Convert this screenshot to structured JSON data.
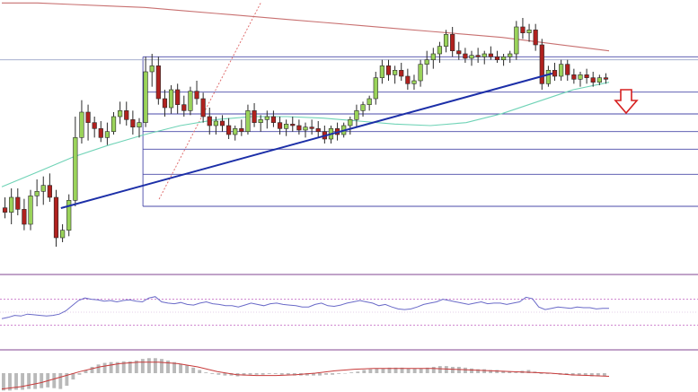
{
  "chart_data": [
    {
      "type": "candlestick",
      "panel": "price",
      "candles": [
        {
          "o": 201,
          "h": 208,
          "l": 194,
          "c": 198
        },
        {
          "o": 198,
          "h": 214,
          "l": 190,
          "c": 208
        },
        {
          "o": 208,
          "h": 214,
          "l": 196,
          "c": 200
        },
        {
          "o": 200,
          "h": 207,
          "l": 186,
          "c": 190
        },
        {
          "o": 190,
          "h": 213,
          "l": 186,
          "c": 209
        },
        {
          "o": 209,
          "h": 220,
          "l": 202,
          "c": 212
        },
        {
          "o": 212,
          "h": 222,
          "l": 203,
          "c": 216
        },
        {
          "o": 216,
          "h": 224,
          "l": 205,
          "c": 208
        },
        {
          "o": 208,
          "h": 213,
          "l": 175,
          "c": 181
        },
        {
          "o": 181,
          "h": 190,
          "l": 178,
          "c": 186
        },
        {
          "o": 186,
          "h": 210,
          "l": 182,
          "c": 206
        },
        {
          "o": 206,
          "h": 262,
          "l": 202,
          "c": 248
        },
        {
          "o": 248,
          "h": 273,
          "l": 244,
          "c": 265
        },
        {
          "o": 265,
          "h": 270,
          "l": 246,
          "c": 258
        },
        {
          "o": 258,
          "h": 262,
          "l": 248,
          "c": 254
        },
        {
          "o": 254,
          "h": 259,
          "l": 245,
          "c": 248
        },
        {
          "o": 248,
          "h": 258,
          "l": 243,
          "c": 252
        },
        {
          "o": 252,
          "h": 265,
          "l": 250,
          "c": 262
        },
        {
          "o": 262,
          "h": 272,
          "l": 257,
          "c": 266
        },
        {
          "o": 266,
          "h": 272,
          "l": 256,
          "c": 260
        },
        {
          "o": 260,
          "h": 266,
          "l": 250,
          "c": 255
        },
        {
          "o": 255,
          "h": 261,
          "l": 248,
          "c": 258
        },
        {
          "o": 258,
          "h": 302,
          "l": 255,
          "c": 292
        },
        {
          "o": 292,
          "h": 304,
          "l": 282,
          "c": 296
        },
        {
          "o": 296,
          "h": 302,
          "l": 270,
          "c": 274
        },
        {
          "o": 274,
          "h": 280,
          "l": 262,
          "c": 268
        },
        {
          "o": 268,
          "h": 283,
          "l": 264,
          "c": 280
        },
        {
          "o": 280,
          "h": 284,
          "l": 264,
          "c": 270
        },
        {
          "o": 270,
          "h": 276,
          "l": 262,
          "c": 266
        },
        {
          "o": 266,
          "h": 282,
          "l": 263,
          "c": 279
        },
        {
          "o": 279,
          "h": 286,
          "l": 270,
          "c": 274
        },
        {
          "o": 274,
          "h": 278,
          "l": 258,
          "c": 262
        },
        {
          "o": 262,
          "h": 268,
          "l": 250,
          "c": 256
        },
        {
          "o": 256,
          "h": 262,
          "l": 250,
          "c": 259
        },
        {
          "o": 259,
          "h": 263,
          "l": 252,
          "c": 256
        },
        {
          "o": 256,
          "h": 261,
          "l": 247,
          "c": 250
        },
        {
          "o": 250,
          "h": 256,
          "l": 246,
          "c": 254
        },
        {
          "o": 254,
          "h": 260,
          "l": 249,
          "c": 252
        },
        {
          "o": 252,
          "h": 270,
          "l": 250,
          "c": 266
        },
        {
          "o": 266,
          "h": 271,
          "l": 255,
          "c": 258
        },
        {
          "o": 258,
          "h": 263,
          "l": 252,
          "c": 260
        },
        {
          "o": 260,
          "h": 266,
          "l": 254,
          "c": 262
        },
        {
          "o": 262,
          "h": 266,
          "l": 255,
          "c": 258
        },
        {
          "o": 258,
          "h": 262,
          "l": 250,
          "c": 254
        },
        {
          "o": 254,
          "h": 260,
          "l": 249,
          "c": 257
        },
        {
          "o": 257,
          "h": 262,
          "l": 252,
          "c": 256
        },
        {
          "o": 256,
          "h": 260,
          "l": 250,
          "c": 253
        },
        {
          "o": 253,
          "h": 258,
          "l": 248,
          "c": 255
        },
        {
          "o": 255,
          "h": 260,
          "l": 250,
          "c": 254
        },
        {
          "o": 254,
          "h": 259,
          "l": 248,
          "c": 252
        },
        {
          "o": 252,
          "h": 256,
          "l": 244,
          "c": 247
        },
        {
          "o": 247,
          "h": 256,
          "l": 244,
          "c": 254
        },
        {
          "o": 254,
          "h": 258,
          "l": 246,
          "c": 250
        },
        {
          "o": 250,
          "h": 258,
          "l": 248,
          "c": 256
        },
        {
          "o": 256,
          "h": 262,
          "l": 250,
          "c": 260
        },
        {
          "o": 260,
          "h": 270,
          "l": 255,
          "c": 266
        },
        {
          "o": 266,
          "h": 272,
          "l": 262,
          "c": 270
        },
        {
          "o": 270,
          "h": 276,
          "l": 266,
          "c": 274
        },
        {
          "o": 274,
          "h": 292,
          "l": 270,
          "c": 288
        },
        {
          "o": 288,
          "h": 300,
          "l": 284,
          "c": 296
        },
        {
          "o": 296,
          "h": 300,
          "l": 286,
          "c": 290
        },
        {
          "o": 290,
          "h": 296,
          "l": 284,
          "c": 293
        },
        {
          "o": 293,
          "h": 298,
          "l": 286,
          "c": 289
        },
        {
          "o": 289,
          "h": 294,
          "l": 280,
          "c": 284
        },
        {
          "o": 284,
          "h": 290,
          "l": 280,
          "c": 286
        },
        {
          "o": 286,
          "h": 300,
          "l": 282,
          "c": 297
        },
        {
          "o": 297,
          "h": 306,
          "l": 290,
          "c": 300
        },
        {
          "o": 300,
          "h": 308,
          "l": 294,
          "c": 304
        },
        {
          "o": 304,
          "h": 312,
          "l": 298,
          "c": 309
        },
        {
          "o": 309,
          "h": 320,
          "l": 305,
          "c": 317
        },
        {
          "o": 317,
          "h": 322,
          "l": 302,
          "c": 306
        },
        {
          "o": 306,
          "h": 312,
          "l": 300,
          "c": 304
        },
        {
          "o": 304,
          "h": 308,
          "l": 298,
          "c": 301
        },
        {
          "o": 301,
          "h": 306,
          "l": 296,
          "c": 303
        },
        {
          "o": 303,
          "h": 308,
          "l": 298,
          "c": 302
        },
        {
          "o": 302,
          "h": 306,
          "l": 297,
          "c": 304
        },
        {
          "o": 304,
          "h": 309,
          "l": 300,
          "c": 302
        },
        {
          "o": 302,
          "h": 306,
          "l": 298,
          "c": 300
        },
        {
          "o": 300,
          "h": 304,
          "l": 296,
          "c": 302
        },
        {
          "o": 302,
          "h": 306,
          "l": 298,
          "c": 304
        },
        {
          "o": 304,
          "h": 326,
          "l": 300,
          "c": 322
        },
        {
          "o": 322,
          "h": 328,
          "l": 314,
          "c": 318
        },
        {
          "o": 318,
          "h": 324,
          "l": 312,
          "c": 320
        },
        {
          "o": 320,
          "h": 324,
          "l": 306,
          "c": 310
        },
        {
          "o": 310,
          "h": 314,
          "l": 280,
          "c": 284
        },
        {
          "o": 284,
          "h": 296,
          "l": 282,
          "c": 293
        },
        {
          "o": 293,
          "h": 298,
          "l": 286,
          "c": 289
        },
        {
          "o": 289,
          "h": 300,
          "l": 286,
          "c": 297
        },
        {
          "o": 297,
          "h": 300,
          "l": 286,
          "c": 290
        },
        {
          "o": 290,
          "h": 294,
          "l": 284,
          "c": 287
        },
        {
          "o": 287,
          "h": 292,
          "l": 282,
          "c": 290
        },
        {
          "o": 290,
          "h": 294,
          "l": 284,
          "c": 288
        },
        {
          "o": 288,
          "h": 292,
          "l": 282,
          "c": 285
        },
        {
          "o": 285,
          "h": 290,
          "l": 283,
          "c": 288
        },
        {
          "o": 288,
          "h": 291,
          "l": 284,
          "c": 287
        }
      ],
      "moving_averages": [
        {
          "color": "#c87070",
          "values": [
            338,
            338,
            337,
            336,
            335,
            333,
            331,
            329,
            327,
            325,
            323,
            321,
            319,
            317,
            315,
            312,
            309,
            306
          ]
        },
        {
          "color": "#6fd3b6",
          "values": [
            215,
            225,
            235,
            243,
            250,
            256,
            260,
            262,
            262,
            261,
            259,
            257,
            256,
            258,
            264,
            272,
            280,
            285
          ]
        }
      ],
      "trendline": {
        "color": "#1c2fa8"
      },
      "fibonacci_levels": [
        0,
        0.236,
        0.382,
        0.5,
        0.618,
        0.786,
        1
      ],
      "signal": {
        "direction": "down",
        "color": "#d62020"
      },
      "ylim": [
        160,
        340
      ]
    },
    {
      "type": "line",
      "panel": "rsi",
      "values": [
        40,
        42,
        45,
        44,
        47,
        46,
        45,
        44,
        45,
        47,
        52,
        60,
        68,
        72,
        70,
        69,
        67,
        68,
        66,
        68,
        69,
        67,
        66,
        72,
        74,
        66,
        64,
        63,
        65,
        62,
        61,
        64,
        66,
        63,
        62,
        60,
        60,
        58,
        61,
        64,
        62,
        60,
        63,
        64,
        62,
        61,
        60,
        58,
        58,
        62,
        64,
        60,
        59,
        61,
        64,
        66,
        68,
        66,
        64,
        60,
        62,
        58,
        55,
        54,
        55,
        58,
        62,
        64,
        66,
        70,
        68,
        66,
        64,
        62,
        64,
        66,
        63,
        64,
        64,
        62,
        64,
        66,
        73,
        71,
        58,
        54,
        56,
        58,
        57,
        56,
        58,
        57,
        57,
        55,
        56,
        56
      ],
      "levels": [
        70,
        30
      ],
      "ylim": [
        0,
        100
      ],
      "color": "#6a6ac8"
    },
    {
      "type": "bar",
      "panel": "macd",
      "values": [
        -2.2,
        -2.2,
        -2.1,
        -2.1,
        -2.0,
        -2.0,
        -1.9,
        -1.8,
        -1.9,
        -2.0,
        -1.6,
        -0.8,
        -0.2,
        0.4,
        0.8,
        1.1,
        1.3,
        1.4,
        1.4,
        1.5,
        1.5,
        1.6,
        1.8,
        1.9,
        1.9,
        1.8,
        1.6,
        1.4,
        1.2,
        1.0,
        0.7,
        0.4,
        0.1,
        -0.1,
        -0.2,
        -0.3,
        -0.3,
        -0.4,
        -0.3,
        -0.2,
        -0.2,
        -0.2,
        -0.1,
        -0.1,
        -0.2,
        -0.2,
        -0.3,
        -0.3,
        -0.3,
        -0.3,
        -0.3,
        -0.2,
        -0.2,
        -0.1,
        0.0,
        0.1,
        0.2,
        0.4,
        0.5,
        0.6,
        0.6,
        0.7,
        0.7,
        0.7,
        0.6,
        0.6,
        0.6,
        0.7,
        0.8,
        0.9,
        0.9,
        0.8,
        0.8,
        0.7,
        0.6,
        0.5,
        0.5,
        0.4,
        0.4,
        0.3,
        0.2,
        0.1,
        0.3,
        0.4,
        0.2,
        -0.1,
        -0.1,
        -0.1,
        -0.2,
        -0.2,
        -0.3,
        -0.3,
        -0.3,
        -0.4,
        -0.4,
        -0.4
      ],
      "signal_line": [
        -2.0,
        -1.7,
        -1.2,
        -0.5,
        0.2,
        0.8,
        1.2,
        1.4,
        1.4,
        1.2,
        0.8,
        0.2,
        -0.2,
        -0.3,
        -0.3,
        -0.2,
        0.0,
        0.3,
        0.5,
        0.6,
        0.6,
        0.6,
        0.6,
        0.5,
        0.4,
        0.3,
        0.2,
        0.1,
        0.0,
        -0.2,
        -0.3,
        -0.4
      ],
      "ylim": [
        -2.5,
        2.5
      ],
      "bar_color": "#b9b9b9",
      "signal_color": "#c83a3a"
    }
  ]
}
